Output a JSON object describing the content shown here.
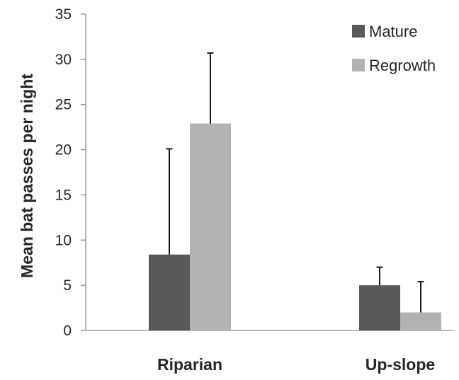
{
  "chart_data": {
    "type": "bar",
    "title": "",
    "xlabel": "",
    "ylabel": "Mean bat passes per night",
    "ylim": [
      0,
      35
    ],
    "yticks": [
      0,
      5,
      10,
      15,
      20,
      25,
      30,
      35
    ],
    "grid": false,
    "legend_position": "top-right",
    "categories": [
      "Riparian",
      "Up-slope"
    ],
    "series": [
      {
        "name": "Mature",
        "color": "#595959",
        "values": [
          8.4,
          5.0
        ],
        "error_upper": [
          20.1,
          7.0
        ]
      },
      {
        "name": "Regrowth",
        "color": "#b3b3b3",
        "values": [
          22.9,
          2.0
        ],
        "error_upper": [
          30.7,
          5.4
        ]
      }
    ]
  }
}
